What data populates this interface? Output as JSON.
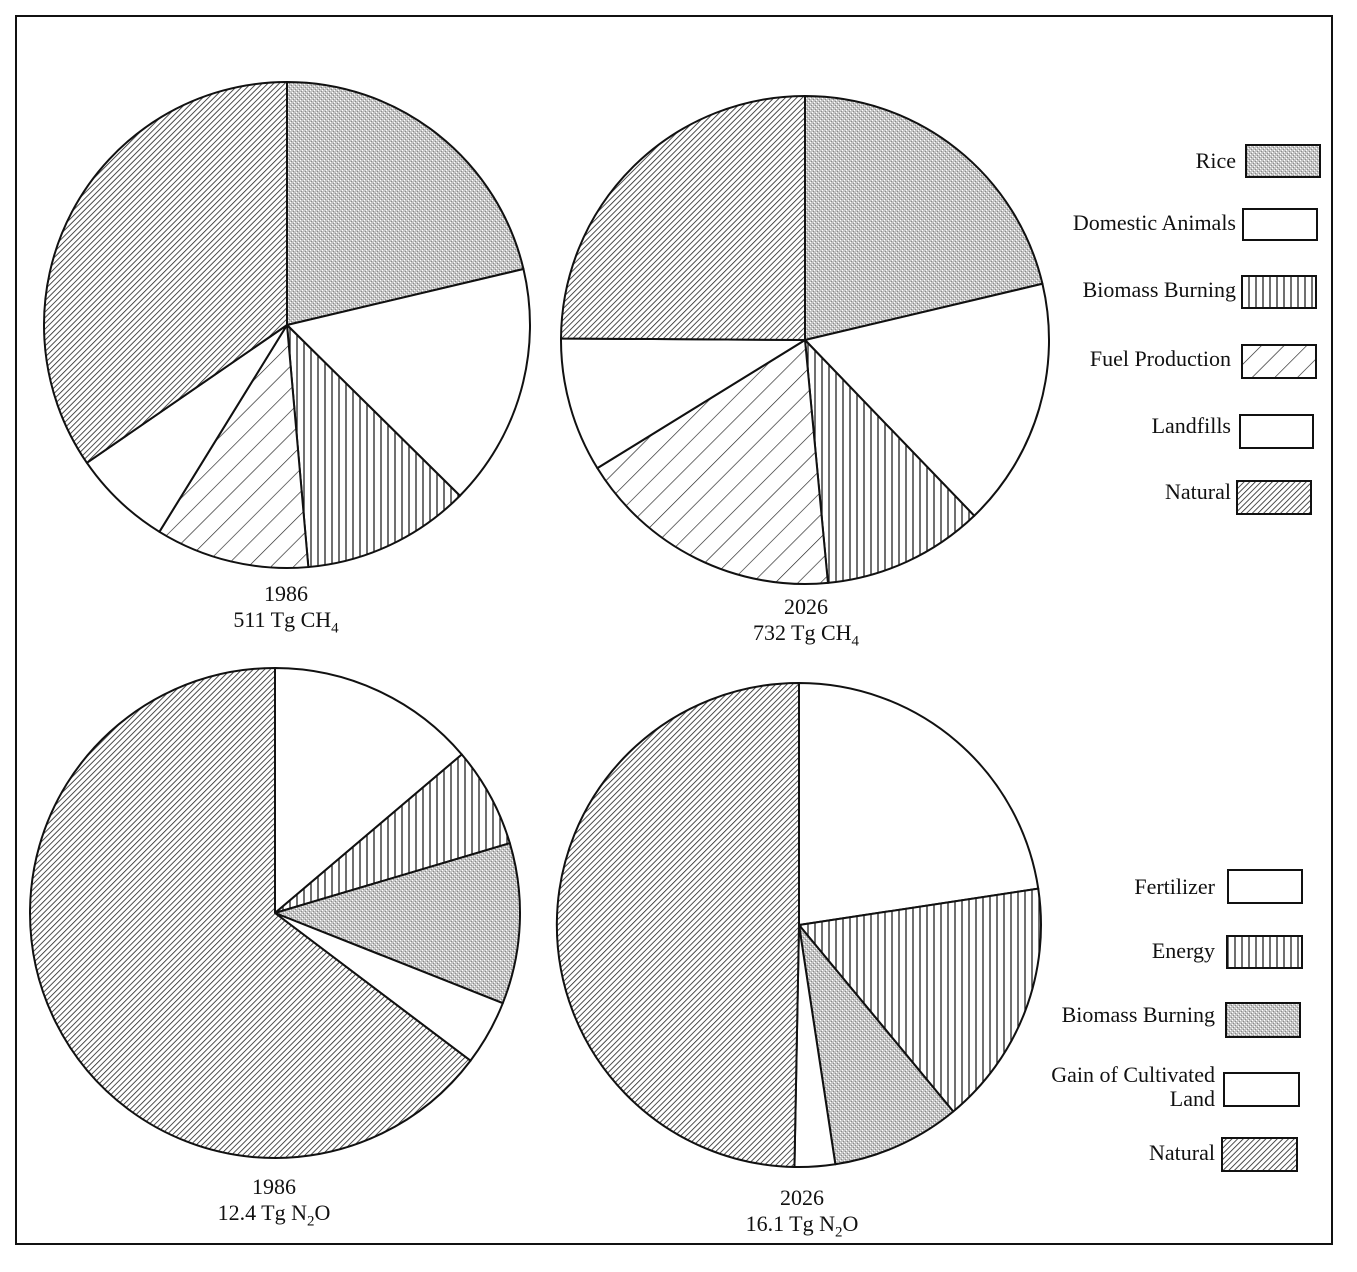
{
  "chart_data": [
    {
      "type": "pie",
      "year": "1986",
      "total_prefix": "511 Tg CH",
      "total_sub": "4",
      "total_suffix": "",
      "total_value": 511,
      "unit": "Tg CH4",
      "categories": [
        "Rice",
        "Domestic Animals",
        "Biomass Burning",
        "Fuel Production",
        "Landfills",
        "Natural"
      ],
      "values": [
        21.3,
        16.1,
        11.2,
        10.2,
        6.6,
        34.6
      ],
      "value_unit": "percent of total (estimated)"
    },
    {
      "type": "pie",
      "year": "2026",
      "total_prefix": "732 Tg CH",
      "total_sub": "4",
      "total_suffix": "",
      "total_value": 732,
      "unit": "Tg CH4",
      "categories": [
        "Rice",
        "Domestic Animals",
        "Biomass Burning",
        "Fuel Production",
        "Landfills",
        "Natural"
      ],
      "values": [
        21.3,
        16.5,
        10.7,
        17.7,
        8.9,
        24.9
      ],
      "value_unit": "percent of total (estimated)"
    },
    {
      "type": "pie",
      "year": "1986",
      "total_prefix": "12.4 Tg N",
      "total_sub": "2",
      "total_suffix": "O",
      "total_value": 12.4,
      "unit": "Tg N2O",
      "categories": [
        "Fertilizer",
        "Energy",
        "Biomass Burning",
        "Gain of Cultivated Land",
        "Natural"
      ],
      "values": [
        13.8,
        6.6,
        10.6,
        4.3,
        64.7
      ],
      "value_unit": "percent of total (estimated)"
    },
    {
      "type": "pie",
      "year": "2026",
      "total_prefix": "16.1 Tg N",
      "total_sub": "2",
      "total_suffix": "O",
      "total_value": 16.1,
      "unit": "Tg N2O",
      "categories": [
        "Fertilizer",
        "Energy",
        "Biomass Burning",
        "Gain of Cultivated Land",
        "Natural"
      ],
      "values": [
        22.6,
        16.4,
        8.6,
        2.7,
        49.7
      ],
      "value_unit": "percent of total (estimated)"
    }
  ],
  "legends": {
    "ch4": [
      {
        "label": "Rice",
        "pattern": "stipple"
      },
      {
        "label": "Domestic Animals",
        "pattern": "white"
      },
      {
        "label": "Biomass Burning",
        "pattern": "vertical"
      },
      {
        "label": "Fuel Production",
        "pattern": "diagonal"
      },
      {
        "label": "Landfills",
        "pattern": "white"
      },
      {
        "label": "Natural",
        "pattern": "finehatch"
      }
    ],
    "n2o": [
      {
        "label": "Fertilizer",
        "pattern": "white"
      },
      {
        "label": "Energy",
        "pattern": "vertical"
      },
      {
        "label": "Biomass Burning",
        "pattern": "stipple"
      },
      {
        "label": "Gain of Cultivated Land",
        "pattern": "white"
      },
      {
        "label": "Natural",
        "pattern": "finehatch"
      }
    ]
  },
  "colors": {
    "ink": "#111111",
    "stipple_fill": "#bdbdbd",
    "paper": "#ffffff"
  }
}
